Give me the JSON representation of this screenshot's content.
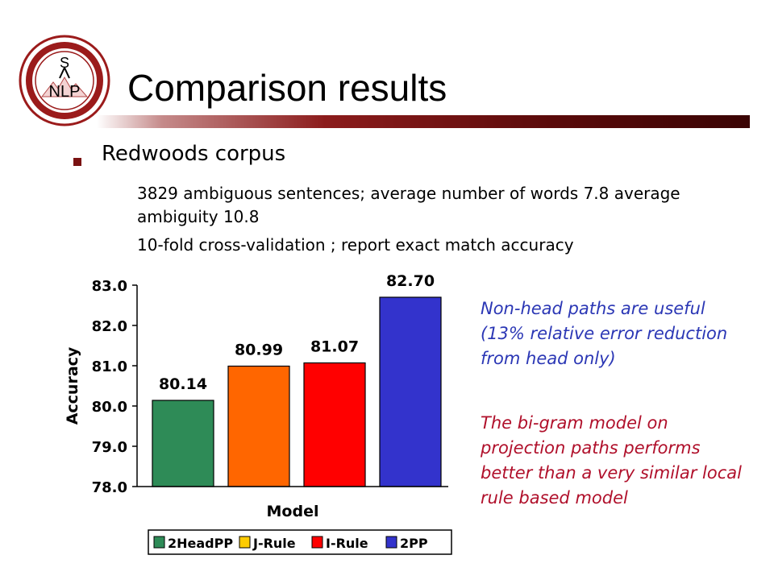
{
  "slide": {
    "title": "Comparison results",
    "logo_text": [
      "S",
      "NLP"
    ],
    "bullet": "Redwoods corpus",
    "sub_lines": [
      " 3829 ambiguous sentences; average number of words 7.8 average ambiguity 10.8",
      "10-fold cross-validation ; report exact match accuracy"
    ],
    "notes": {
      "blue": "Non-head paths are useful (13% relative error reduction from head only)",
      "red": "The bi-gram model on projection paths performs better than a very similar local rule based model"
    }
  },
  "colors": {
    "title_bar": "#6b0f0f",
    "bullet": "#7a1212",
    "note_blue": "#2b37b5",
    "note_red": "#b0102b"
  },
  "chart_data": {
    "type": "bar",
    "categories": [
      "2HeadPP",
      "J-Rule",
      "I-Rule",
      "2PP"
    ],
    "values": [
      80.14,
      80.99,
      81.07,
      82.7
    ],
    "value_labels": [
      "80.14",
      "80.99",
      "81.07",
      "82.70"
    ],
    "colors": [
      "#2e8b57",
      "#ff6600",
      "#ff0000",
      "#3333cc"
    ],
    "legend_colors": [
      "#2e8b57",
      "#ffcc00",
      "#ff0000",
      "#3333cc"
    ],
    "title": "",
    "xlabel": "Model",
    "ylabel": "Accuracy",
    "ylim": [
      78.0,
      83.0
    ],
    "yticks": [
      "78.0",
      "79.0",
      "80.0",
      "81.0",
      "82.0",
      "83.0"
    ],
    "grid": false,
    "legend_position": "bottom"
  }
}
